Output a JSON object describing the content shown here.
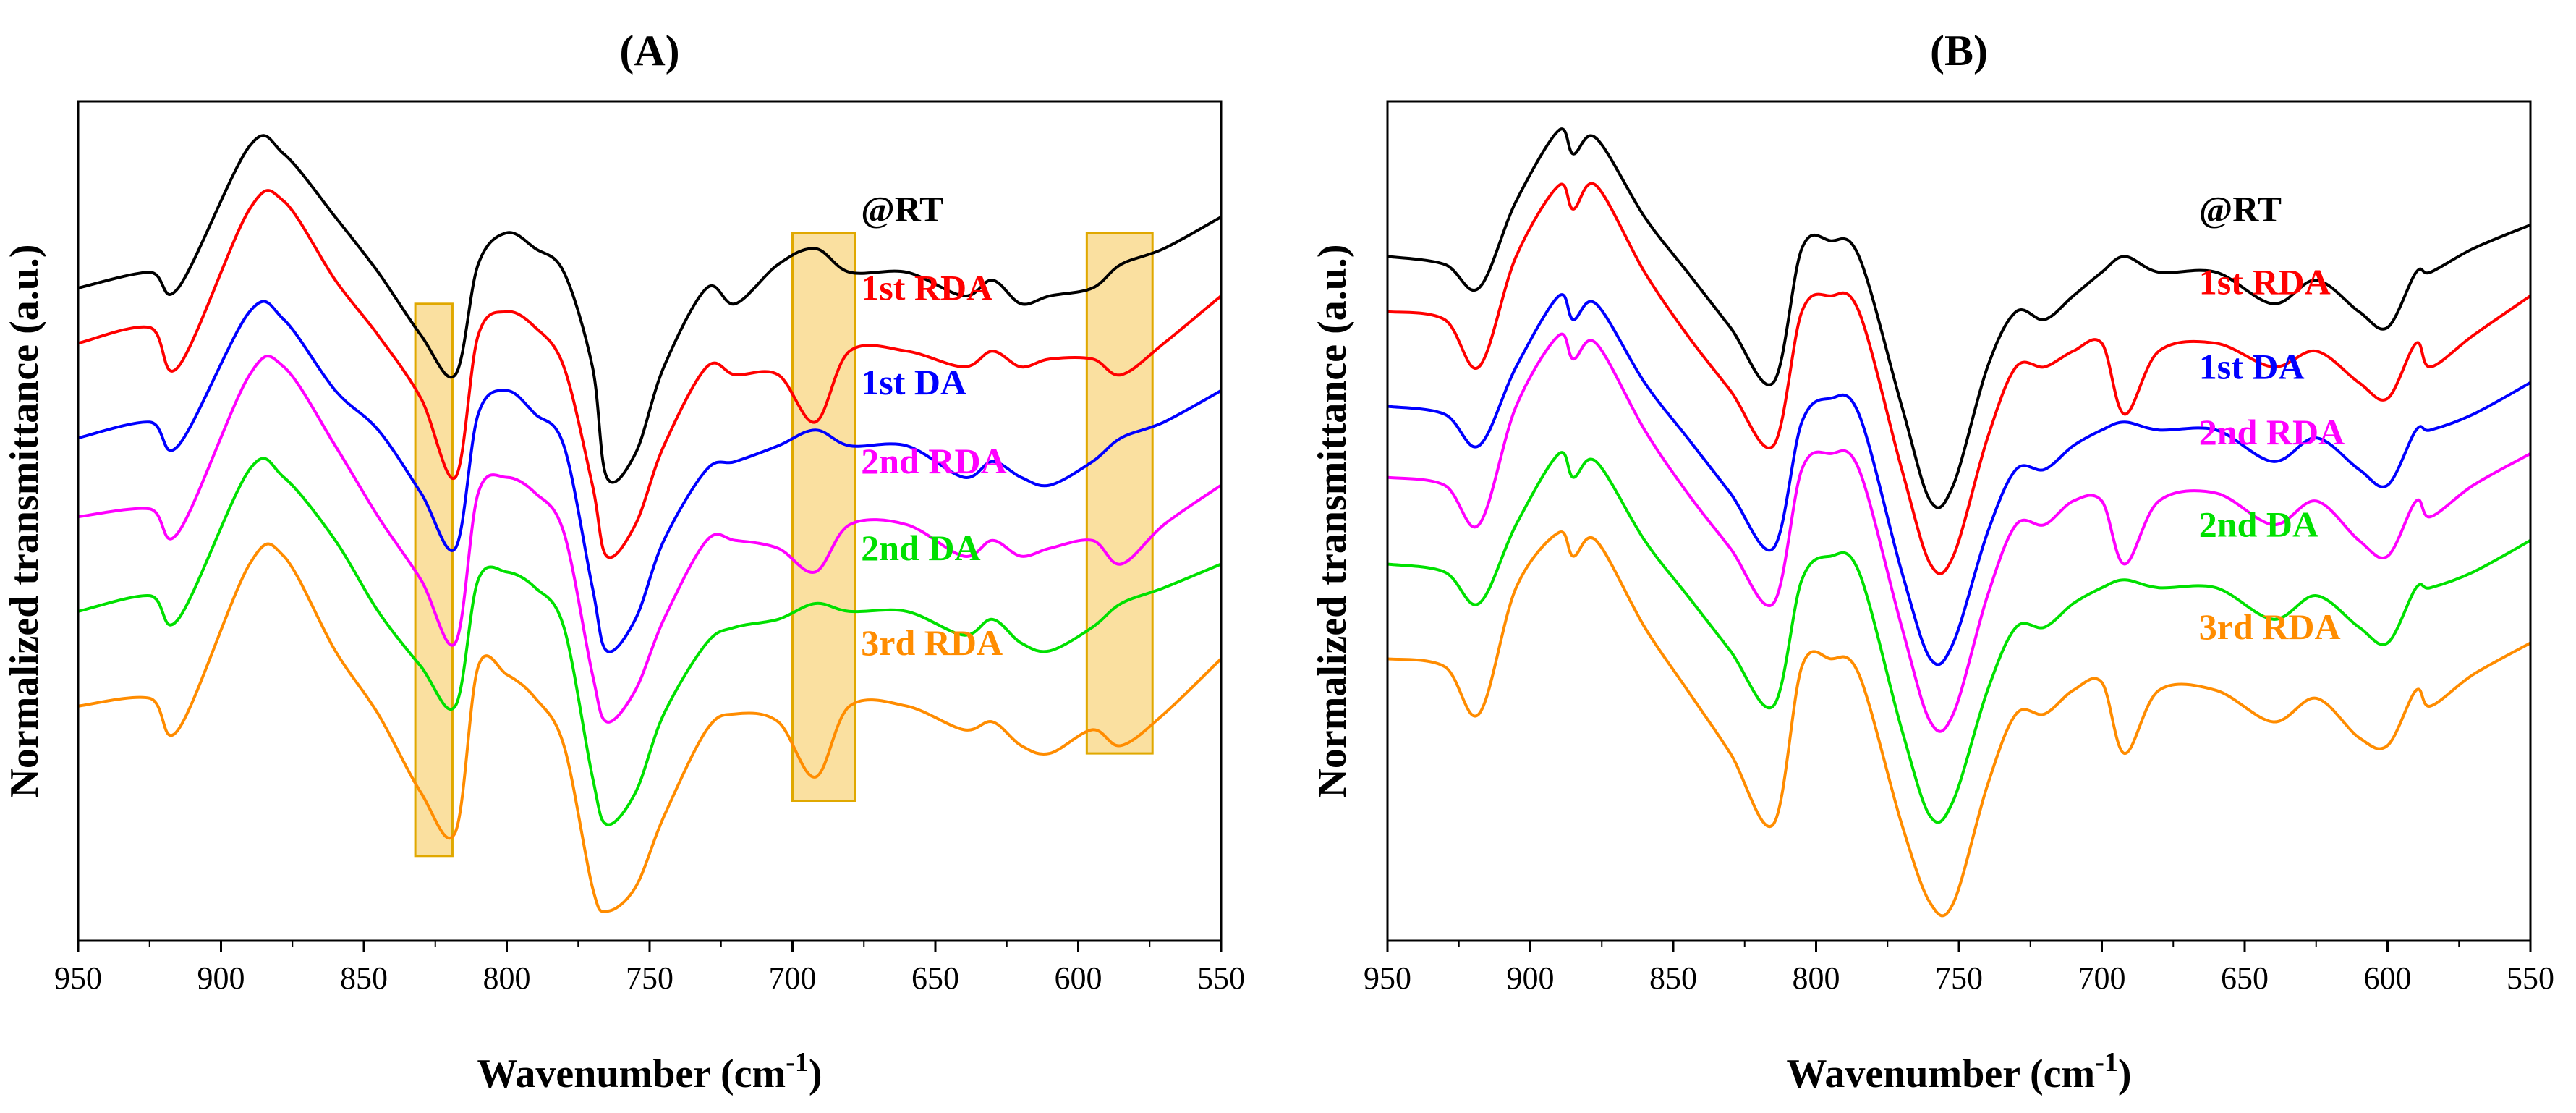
{
  "chart_data": [
    {
      "type": "line",
      "panel_title": "(A)",
      "xlabel": "Wavenumber (cm",
      "xlabel_superscript": "-1",
      "xlabel_close": ")",
      "ylabel": "Normalized transmittance (a.u.)",
      "xlim": [
        950,
        550
      ],
      "ylim": [
        0,
        1
      ],
      "x_reversed": true,
      "y_ticks_shown": false,
      "xticks": [
        "950",
        "900",
        "850",
        "800",
        "750",
        "700",
        "650",
        "600",
        "550"
      ],
      "x": [
        950,
        925,
        915,
        890,
        878,
        860,
        845,
        830,
        818,
        810,
        800,
        790,
        780,
        770,
        765,
        755,
        745,
        730,
        720,
        705,
        692,
        680,
        660,
        640,
        630,
        620,
        610,
        595,
        585,
        570,
        550
      ],
      "series": [
        {
          "name": "@RT",
          "color": "#000000",
          "values": [
            0.8,
            0.82,
            0.8,
            0.98,
            0.97,
            0.89,
            0.82,
            0.74,
            0.69,
            0.83,
            0.87,
            0.85,
            0.82,
            0.7,
            0.56,
            0.59,
            0.7,
            0.8,
            0.78,
            0.83,
            0.85,
            0.82,
            0.82,
            0.79,
            0.81,
            0.78,
            0.79,
            0.8,
            0.83,
            0.85,
            0.89
          ]
        },
        {
          "name": "1st RDA",
          "color": "#ff0000",
          "values": [
            0.73,
            0.75,
            0.7,
            0.9,
            0.91,
            0.81,
            0.74,
            0.66,
            0.56,
            0.74,
            0.77,
            0.75,
            0.7,
            0.55,
            0.46,
            0.5,
            0.6,
            0.7,
            0.69,
            0.69,
            0.63,
            0.72,
            0.72,
            0.7,
            0.72,
            0.7,
            0.71,
            0.71,
            0.69,
            0.73,
            0.79
          ]
        },
        {
          "name": "1st DA",
          "color": "#0000ff",
          "values": [
            0.61,
            0.63,
            0.6,
            0.77,
            0.76,
            0.67,
            0.62,
            0.54,
            0.47,
            0.64,
            0.67,
            0.64,
            0.6,
            0.42,
            0.34,
            0.38,
            0.48,
            0.57,
            0.58,
            0.6,
            0.62,
            0.6,
            0.6,
            0.56,
            0.58,
            0.56,
            0.55,
            0.58,
            0.61,
            0.63,
            0.67
          ]
        },
        {
          "name": "2nd RDA",
          "color": "#ff00ff",
          "values": [
            0.51,
            0.52,
            0.49,
            0.69,
            0.7,
            0.6,
            0.51,
            0.43,
            0.35,
            0.54,
            0.56,
            0.54,
            0.49,
            0.31,
            0.25,
            0.29,
            0.38,
            0.48,
            0.48,
            0.47,
            0.44,
            0.5,
            0.5,
            0.46,
            0.48,
            0.46,
            0.47,
            0.48,
            0.45,
            0.5,
            0.55
          ]
        },
        {
          "name": "2nd DA",
          "color": "#00e000",
          "values": [
            0.39,
            0.41,
            0.38,
            0.57,
            0.56,
            0.48,
            0.39,
            0.32,
            0.27,
            0.43,
            0.44,
            0.42,
            0.37,
            0.18,
            0.12,
            0.16,
            0.26,
            0.35,
            0.37,
            0.38,
            0.4,
            0.39,
            0.39,
            0.36,
            0.38,
            0.35,
            0.34,
            0.37,
            0.4,
            0.42,
            0.45
          ]
        },
        {
          "name": "3rd RDA",
          "color": "#ff8c00",
          "values": [
            0.27,
            0.28,
            0.24,
            0.45,
            0.46,
            0.34,
            0.26,
            0.16,
            0.11,
            0.32,
            0.31,
            0.28,
            0.22,
            0.04,
            0.01,
            0.04,
            0.13,
            0.24,
            0.26,
            0.25,
            0.18,
            0.27,
            0.27,
            0.24,
            0.25,
            0.22,
            0.21,
            0.24,
            0.22,
            0.26,
            0.33
          ]
        }
      ],
      "highlight_bands": [
        {
          "from": 832,
          "to": 819,
          "ymin": 0.08,
          "ymax": 0.78
        },
        {
          "from": 700,
          "to": 678,
          "ymin": 0.15,
          "ymax": 0.87
        },
        {
          "from": 597,
          "to": 574,
          "ymin": 0.21,
          "ymax": 0.87
        }
      ],
      "highlight_color": "#f5c242",
      "labels_x": 676,
      "labels_offset": 0.065
    },
    {
      "type": "line",
      "panel_title": "(B)",
      "xlabel": "Wavenumber (cm",
      "xlabel_superscript": "-1",
      "xlabel_close": ")",
      "ylabel": "Normalized transmittance (a.u.)",
      "xlim": [
        950,
        550
      ],
      "ylim": [
        0,
        1
      ],
      "x_reversed": true,
      "y_ticks_shown": false,
      "xticks": [
        "950",
        "900",
        "850",
        "800",
        "750",
        "700",
        "650",
        "600",
        "550"
      ],
      "x": [
        950,
        930,
        918,
        905,
        890,
        885,
        877,
        860,
        845,
        830,
        815,
        805,
        795,
        785,
        770,
        760,
        752,
        740,
        730,
        720,
        710,
        700,
        692,
        680,
        660,
        640,
        625,
        610,
        600,
        590,
        585,
        570,
        550
      ],
      "series": [
        {
          "name": "@RT",
          "color": "#000000",
          "values": [
            0.84,
            0.83,
            0.8,
            0.91,
            1.0,
            0.97,
            0.99,
            0.89,
            0.82,
            0.75,
            0.68,
            0.85,
            0.86,
            0.84,
            0.65,
            0.53,
            0.55,
            0.7,
            0.77,
            0.76,
            0.79,
            0.82,
            0.84,
            0.82,
            0.82,
            0.78,
            0.81,
            0.77,
            0.75,
            0.82,
            0.82,
            0.85,
            0.88
          ]
        },
        {
          "name": "1st RDA",
          "color": "#ff0000",
          "values": [
            0.77,
            0.76,
            0.7,
            0.84,
            0.93,
            0.9,
            0.93,
            0.82,
            0.74,
            0.67,
            0.6,
            0.77,
            0.79,
            0.77,
            0.57,
            0.45,
            0.46,
            0.61,
            0.7,
            0.7,
            0.72,
            0.73,
            0.64,
            0.72,
            0.73,
            0.7,
            0.72,
            0.68,
            0.66,
            0.73,
            0.7,
            0.74,
            0.79
          ]
        },
        {
          "name": "1st DA",
          "color": "#0000ff",
          "values": [
            0.65,
            0.64,
            0.6,
            0.7,
            0.79,
            0.76,
            0.78,
            0.68,
            0.61,
            0.54,
            0.47,
            0.63,
            0.66,
            0.64,
            0.44,
            0.33,
            0.35,
            0.49,
            0.57,
            0.57,
            0.6,
            0.62,
            0.63,
            0.62,
            0.62,
            0.58,
            0.61,
            0.57,
            0.55,
            0.62,
            0.62,
            0.64,
            0.68
          ]
        },
        {
          "name": "2nd RDA",
          "color": "#ff00ff",
          "values": [
            0.56,
            0.55,
            0.5,
            0.65,
            0.74,
            0.71,
            0.73,
            0.62,
            0.54,
            0.47,
            0.4,
            0.57,
            0.59,
            0.57,
            0.37,
            0.25,
            0.26,
            0.41,
            0.5,
            0.5,
            0.53,
            0.53,
            0.45,
            0.53,
            0.54,
            0.5,
            0.53,
            0.48,
            0.46,
            0.53,
            0.51,
            0.55,
            0.59
          ]
        },
        {
          "name": "2nd DA",
          "color": "#00e000",
          "values": [
            0.45,
            0.44,
            0.4,
            0.5,
            0.59,
            0.56,
            0.58,
            0.48,
            0.41,
            0.34,
            0.27,
            0.43,
            0.46,
            0.44,
            0.24,
            0.13,
            0.15,
            0.29,
            0.37,
            0.37,
            0.4,
            0.42,
            0.43,
            0.42,
            0.42,
            0.38,
            0.41,
            0.37,
            0.35,
            0.42,
            0.42,
            0.44,
            0.48
          ]
        },
        {
          "name": "3rd RDA",
          "color": "#ff8c00",
          "values": [
            0.33,
            0.32,
            0.26,
            0.42,
            0.49,
            0.46,
            0.48,
            0.37,
            0.29,
            0.21,
            0.12,
            0.32,
            0.33,
            0.31,
            0.12,
            0.02,
            0.02,
            0.17,
            0.26,
            0.26,
            0.29,
            0.3,
            0.21,
            0.29,
            0.29,
            0.25,
            0.28,
            0.23,
            0.22,
            0.29,
            0.27,
            0.31,
            0.35
          ]
        }
      ],
      "highlight_bands": [],
      "highlight_color": "#f5c242",
      "labels_x": 666,
      "labels_offset": 0.065
    }
  ]
}
